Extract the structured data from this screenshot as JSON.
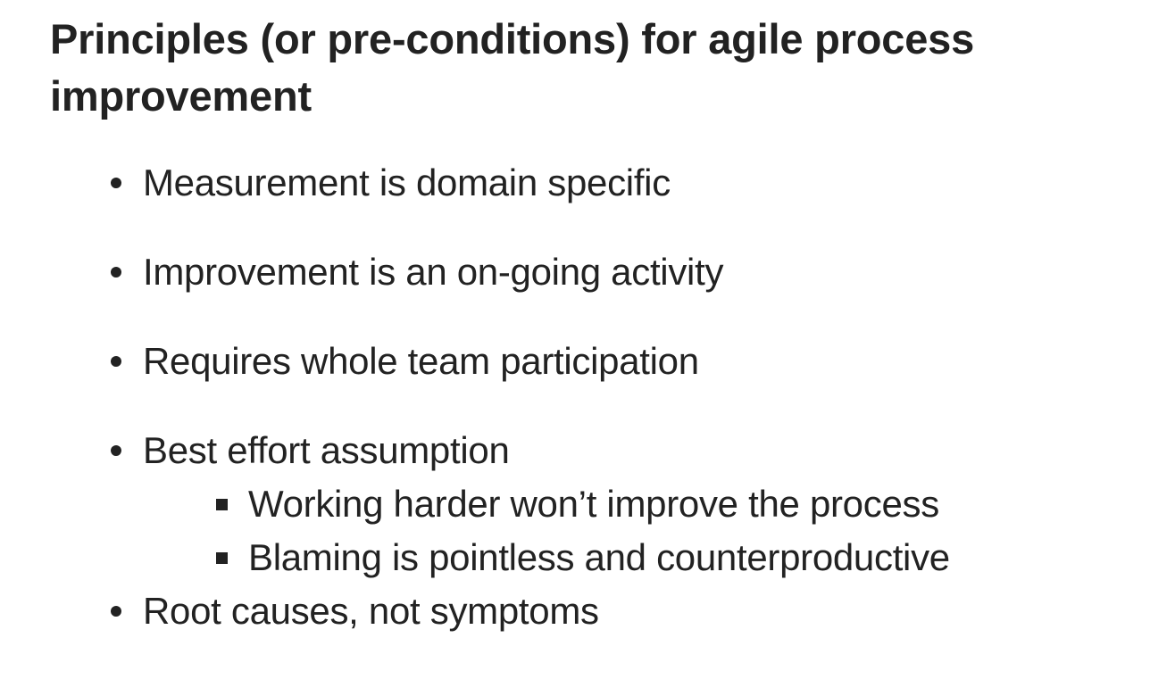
{
  "slide": {
    "title": "Principles (or pre-conditions) for agile process improvement",
    "bullets": [
      {
        "text": "Measurement is domain specific"
      },
      {
        "text": "Improvement is an on-going activity"
      },
      {
        "text": "Requires whole team participation"
      },
      {
        "text": "Best effort assumption",
        "sub": [
          {
            "text": "Working harder won’t improve the process"
          },
          {
            "text": "Blaming is pointless and counterproductive"
          }
        ]
      },
      {
        "text": "Root causes, not symptoms"
      }
    ]
  }
}
